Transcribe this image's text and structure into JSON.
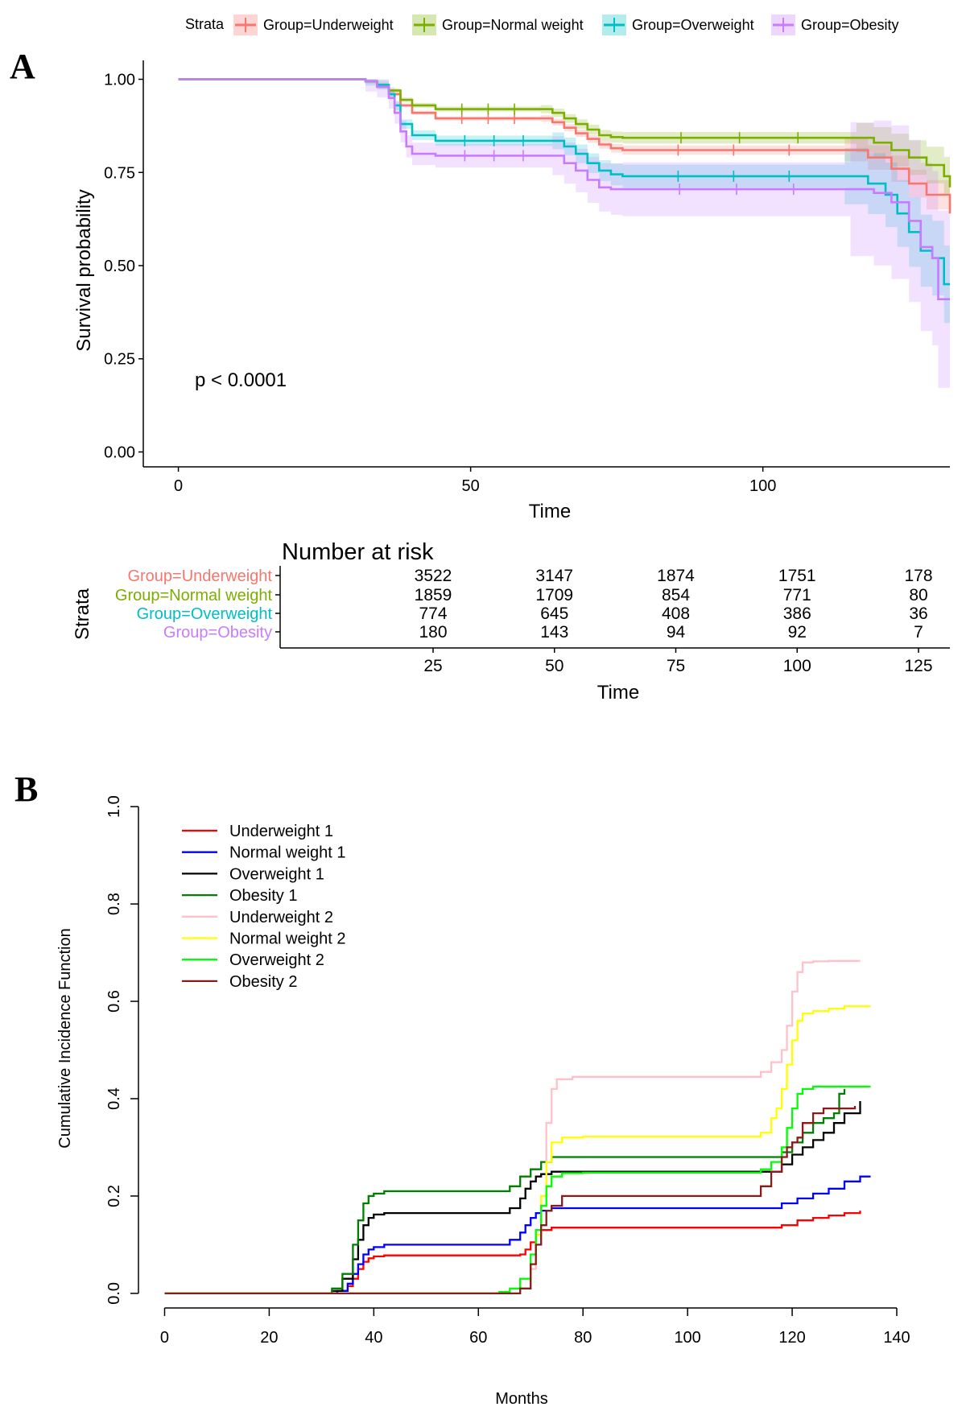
{
  "panels": {
    "a_label": "A",
    "b_label": "B"
  },
  "km_legend": {
    "title": "Strata",
    "entries": [
      {
        "label": "Group=Underweight",
        "color": "#F8766D"
      },
      {
        "label": "Group=Normal weight",
        "color": "#7CAE00"
      },
      {
        "label": "Group=Overweight",
        "color": "#00BFC4"
      },
      {
        "label": "Group=Obesity",
        "color": "#C77CFF"
      }
    ]
  },
  "risk_table": {
    "title": "Number at risk",
    "ylabel": "Strata",
    "xlabel": "Time",
    "times": [
      25,
      50,
      75,
      100,
      125
    ],
    "rows": [
      {
        "label": "Group=Underweight",
        "color": "#F8766D",
        "values": [
          3522,
          3147,
          1874,
          1751,
          178
        ]
      },
      {
        "label": "Group=Normal weight",
        "color": "#7CAE00",
        "values": [
          1859,
          1709,
          854,
          771,
          80
        ]
      },
      {
        "label": "Group=Overweight",
        "color": "#00BFC4",
        "values": [
          774,
          645,
          408,
          386,
          36
        ]
      },
      {
        "label": "Group=Obesity",
        "color": "#C77CFF",
        "values": [
          180,
          143,
          94,
          92,
          7
        ]
      }
    ]
  },
  "chart_data": [
    {
      "type": "line",
      "subtype": "kaplan-meier step",
      "title": "",
      "xlabel": "Time",
      "ylabel": "Survival probability",
      "annotation": "p < 0.0001",
      "xlim": [
        -6,
        132
      ],
      "ylim": [
        -0.04,
        1.04
      ],
      "xticks": [
        0,
        50,
        100
      ],
      "yticks": [
        0,
        0.25,
        0.5,
        0.75,
        1.0
      ],
      "ytick_labels": [
        "0.00",
        "0.25",
        "0.50",
        "0.75",
        "1.00"
      ],
      "series": [
        {
          "name": "Group=Underweight",
          "color": "#F8766D",
          "x": [
            0,
            32,
            34,
            36,
            38,
            40,
            44,
            62,
            64,
            66,
            68,
            70,
            72,
            74,
            76,
            114,
            118,
            122,
            125,
            128,
            132
          ],
          "y": [
            1,
            0.995,
            0.98,
            0.96,
            0.93,
            0.91,
            0.895,
            0.895,
            0.885,
            0.87,
            0.855,
            0.84,
            0.825,
            0.815,
            0.81,
            0.81,
            0.79,
            0.76,
            0.72,
            0.69,
            0.64
          ],
          "band": 0.012
        },
        {
          "name": "Group=Normal weight",
          "color": "#7CAE00",
          "x": [
            0,
            32,
            34,
            36,
            38,
            40,
            44,
            62,
            64,
            66,
            68,
            70,
            72,
            74,
            76,
            116,
            119,
            122,
            125,
            128,
            131,
            132
          ],
          "y": [
            1,
            0.995,
            0.985,
            0.97,
            0.945,
            0.93,
            0.92,
            0.92,
            0.91,
            0.895,
            0.88,
            0.865,
            0.85,
            0.845,
            0.843,
            0.843,
            0.83,
            0.81,
            0.79,
            0.77,
            0.74,
            0.71
          ],
          "band": 0.015
        },
        {
          "name": "Group=Overweight",
          "color": "#00BFC4",
          "x": [
            0,
            32,
            34,
            36,
            37,
            38,
            40,
            44,
            64,
            66,
            68,
            70,
            72,
            74,
            76,
            114,
            118,
            121,
            123,
            125,
            127,
            129,
            131,
            132
          ],
          "y": [
            1,
            0.995,
            0.985,
            0.96,
            0.93,
            0.88,
            0.85,
            0.835,
            0.835,
            0.82,
            0.8,
            0.775,
            0.755,
            0.745,
            0.74,
            0.74,
            0.72,
            0.69,
            0.64,
            0.59,
            0.54,
            0.52,
            0.45,
            0.45
          ],
          "band": 0.03
        },
        {
          "name": "Group=Obesity",
          "color": "#C77CFF",
          "x": [
            0,
            32,
            34,
            36,
            37,
            38,
            39,
            40,
            44,
            64,
            66,
            68,
            70,
            72,
            74,
            76,
            115,
            119,
            122,
            125,
            127,
            129,
            130,
            132
          ],
          "y": [
            1,
            0.995,
            0.98,
            0.95,
            0.91,
            0.86,
            0.82,
            0.8,
            0.795,
            0.795,
            0.775,
            0.755,
            0.73,
            0.71,
            0.705,
            0.705,
            0.705,
            0.695,
            0.67,
            0.62,
            0.55,
            0.52,
            0.41,
            0.41
          ],
          "band": 0.07
        }
      ]
    },
    {
      "type": "line",
      "subtype": "cumulative incidence step",
      "title": "",
      "xlabel": "Months",
      "ylabel": "Cumulative Incidence Function",
      "xlim": [
        -5,
        140
      ],
      "ylim": [
        -0.03,
        1.03
      ],
      "xticks": [
        0,
        20,
        40,
        60,
        80,
        100,
        120,
        140
      ],
      "yticks": [
        0,
        0.2,
        0.4,
        0.6,
        0.8,
        1.0
      ],
      "ytick_labels": [
        "0.0",
        "0.2",
        "0.4",
        "0.6",
        "0.8",
        "1.0"
      ],
      "legend_position": "top-left",
      "series": [
        {
          "name": "Underweight 1",
          "color": "#FF0000",
          "x": [
            0,
            33,
            35,
            36,
            37,
            38,
            39,
            40,
            42,
            46,
            68,
            69,
            70,
            71,
            72,
            74,
            115,
            118,
            121,
            124,
            127,
            130,
            133
          ],
          "y": [
            0,
            0.005,
            0.015,
            0.03,
            0.05,
            0.065,
            0.072,
            0.076,
            0.078,
            0.078,
            0.08,
            0.09,
            0.105,
            0.12,
            0.13,
            0.135,
            0.135,
            0.14,
            0.15,
            0.155,
            0.16,
            0.165,
            0.17
          ]
        },
        {
          "name": "Normal weight 1",
          "color": "#0000FF",
          "x": [
            0,
            33,
            35,
            36,
            37,
            38,
            39,
            40,
            42,
            46,
            64,
            66,
            68,
            69,
            70,
            71,
            72,
            74,
            114,
            118,
            121,
            124,
            127,
            130,
            133,
            135
          ],
          "y": [
            0,
            0.005,
            0.02,
            0.04,
            0.06,
            0.08,
            0.09,
            0.095,
            0.1,
            0.1,
            0.1,
            0.11,
            0.125,
            0.14,
            0.155,
            0.165,
            0.17,
            0.175,
            0.175,
            0.185,
            0.195,
            0.205,
            0.215,
            0.23,
            0.24,
            0.24
          ]
        },
        {
          "name": "Overweight 1",
          "color": "#000000",
          "x": [
            0,
            32,
            34,
            36,
            37,
            38,
            39,
            40,
            42,
            46,
            64,
            66,
            68,
            69,
            70,
            71,
            72,
            74,
            116,
            118,
            120,
            122,
            124,
            126,
            128,
            130,
            133
          ],
          "y": [
            0,
            0.005,
            0.03,
            0.07,
            0.11,
            0.14,
            0.155,
            0.162,
            0.165,
            0.165,
            0.165,
            0.175,
            0.195,
            0.215,
            0.23,
            0.24,
            0.245,
            0.25,
            0.25,
            0.265,
            0.285,
            0.3,
            0.315,
            0.33,
            0.35,
            0.37,
            0.395
          ]
        },
        {
          "name": "Obesity 1",
          "color": "#007F00",
          "x": [
            0,
            32,
            34,
            36,
            37,
            38,
            39,
            40,
            42,
            46,
            64,
            66,
            68,
            70,
            72,
            74,
            115,
            118,
            120,
            122,
            124,
            126,
            128,
            129,
            130
          ],
          "y": [
            0,
            0.01,
            0.04,
            0.1,
            0.15,
            0.185,
            0.2,
            0.205,
            0.21,
            0.21,
            0.21,
            0.22,
            0.24,
            0.255,
            0.27,
            0.28,
            0.28,
            0.29,
            0.31,
            0.33,
            0.35,
            0.36,
            0.37,
            0.41,
            0.42
          ]
        },
        {
          "name": "Underweight 2",
          "color": "#FFC0CB",
          "x": [
            0,
            68,
            70,
            71,
            72,
            73,
            74,
            75,
            78,
            110,
            114,
            116,
            118,
            119,
            120,
            121,
            122,
            124,
            127,
            133
          ],
          "y": [
            0,
            0.01,
            0.05,
            0.1,
            0.2,
            0.35,
            0.42,
            0.44,
            0.445,
            0.445,
            0.455,
            0.475,
            0.5,
            0.55,
            0.62,
            0.66,
            0.68,
            0.682,
            0.683,
            0.683
          ]
        },
        {
          "name": "Normal weight 2",
          "color": "#FFFF00",
          "x": [
            0,
            68,
            70,
            71,
            72,
            73,
            74,
            76,
            80,
            110,
            114,
            116,
            117,
            118,
            119,
            120,
            121,
            122,
            124,
            127,
            130,
            135
          ],
          "y": [
            0,
            0.01,
            0.06,
            0.12,
            0.2,
            0.27,
            0.31,
            0.32,
            0.322,
            0.322,
            0.33,
            0.36,
            0.38,
            0.42,
            0.47,
            0.52,
            0.56,
            0.575,
            0.58,
            0.585,
            0.59,
            0.59
          ]
        },
        {
          "name": "Overweight 2",
          "color": "#00FF00",
          "x": [
            0,
            64,
            66,
            68,
            70,
            71,
            72,
            73,
            74,
            76,
            80,
            110,
            114,
            116,
            118,
            119,
            120,
            121,
            122,
            124,
            130,
            135
          ],
          "y": [
            0,
            0.003,
            0.01,
            0.03,
            0.08,
            0.13,
            0.18,
            0.22,
            0.24,
            0.247,
            0.248,
            0.248,
            0.255,
            0.27,
            0.3,
            0.34,
            0.38,
            0.41,
            0.42,
            0.425,
            0.425,
            0.425
          ]
        },
        {
          "name": "Obesity 2",
          "color": "#8B1A1A",
          "x": [
            0,
            68,
            70,
            71,
            72,
            73,
            74,
            76,
            80,
            110,
            114,
            116,
            118,
            119,
            120,
            121,
            122,
            124,
            126,
            128,
            130,
            132
          ],
          "y": [
            0,
            0.01,
            0.06,
            0.1,
            0.14,
            0.17,
            0.18,
            0.2,
            0.2,
            0.2,
            0.22,
            0.25,
            0.28,
            0.3,
            0.31,
            0.32,
            0.35,
            0.37,
            0.38,
            0.38,
            0.38,
            0.385
          ]
        }
      ]
    }
  ]
}
